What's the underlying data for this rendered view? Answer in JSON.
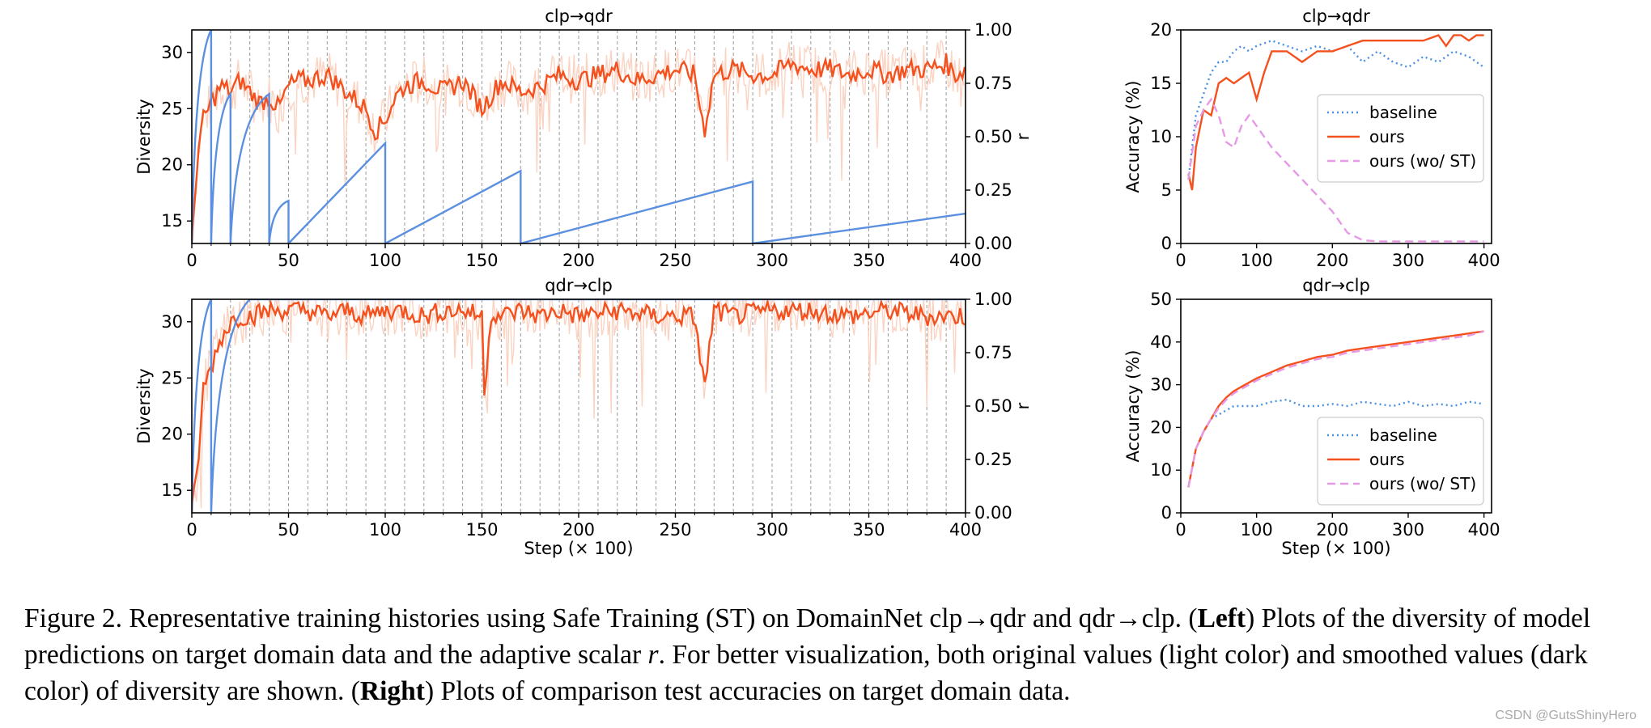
{
  "chart_data": [
    {
      "type": "line",
      "title": "clp→qdr",
      "xlabel": "",
      "ylabel": "Diversity",
      "ylabel_right": "r",
      "xlim": [
        0,
        400
      ],
      "ylim": [
        13,
        32
      ],
      "ylim_right": [
        0,
        1
      ],
      "xticks": [
        "0",
        "50",
        "100",
        "150",
        "200",
        "250",
        "300",
        "350",
        "400"
      ],
      "yticks": [
        "15",
        "20",
        "25",
        "30"
      ],
      "yticks_right": [
        "0.00",
        "0.25",
        "0.50",
        "0.75",
        "1.00"
      ],
      "vlines_every": 10,
      "diversity_smoothed": {
        "x": [
          0,
          3,
          6,
          10,
          15,
          20,
          25,
          30,
          35,
          40,
          45,
          50,
          55,
          60,
          70,
          80,
          90,
          95,
          100,
          105,
          110,
          120,
          130,
          140,
          150,
          160,
          170,
          180,
          190,
          200,
          210,
          220,
          230,
          240,
          250,
          260,
          265,
          270,
          280,
          290,
          300,
          310,
          320,
          330,
          340,
          350,
          360,
          370,
          380,
          390,
          395,
          400
        ],
        "y": [
          13,
          21,
          24,
          25.5,
          27,
          26.5,
          27.5,
          26.5,
          25.5,
          26,
          25,
          27,
          27.5,
          27.5,
          28,
          26.5,
          25,
          23,
          24,
          26,
          27,
          27.5,
          26.5,
          27.5,
          25,
          27.5,
          26.5,
          27,
          28,
          27.5,
          28,
          28.5,
          27.5,
          28,
          28.5,
          28,
          23,
          28,
          28.5,
          28,
          28,
          29,
          28.5,
          28.5,
          28,
          28.5,
          28,
          28.5,
          28.5,
          29,
          28,
          28.5
        ]
      },
      "r_series": {
        "x": [
          0,
          10,
          10,
          20,
          20,
          40,
          40,
          50,
          50,
          100,
          100,
          170,
          170,
          290,
          290,
          400
        ],
        "y": [
          0,
          1,
          0,
          0.7,
          0,
          0.7,
          0,
          0.2,
          0,
          0.47,
          0,
          0.34,
          0,
          0.29,
          0,
          0.14
        ]
      }
    },
    {
      "type": "line",
      "title": "qdr→clp",
      "xlabel": "Step (× 100)",
      "ylabel": "Diversity",
      "ylabel_right": "r",
      "xlim": [
        0,
        400
      ],
      "ylim": [
        13,
        32
      ],
      "ylim_right": [
        0,
        1
      ],
      "xticks": [
        "0",
        "50",
        "100",
        "150",
        "200",
        "250",
        "300",
        "350",
        "400"
      ],
      "yticks": [
        "15",
        "20",
        "25",
        "30"
      ],
      "yticks_right": [
        "0.00",
        "0.25",
        "0.50",
        "0.75",
        "1.00"
      ],
      "vlines_every": 10,
      "diversity_smoothed": {
        "x": [
          0,
          3,
          6,
          10,
          15,
          20,
          25,
          30,
          40,
          50,
          60,
          70,
          80,
          90,
          100,
          110,
          120,
          130,
          140,
          150,
          151,
          155,
          160,
          170,
          180,
          190,
          200,
          220,
          240,
          260,
          265,
          270,
          280,
          300,
          320,
          340,
          360,
          380,
          400
        ],
        "y": [
          13,
          17,
          24,
          26,
          28.5,
          30,
          30.5,
          30.5,
          31,
          31,
          31,
          30.5,
          31,
          30.5,
          31,
          31,
          30.5,
          31,
          31,
          30.5,
          23.5,
          31,
          30.5,
          31,
          30.5,
          31,
          30.5,
          31,
          30.5,
          30.5,
          24,
          31,
          30.5,
          31,
          31,
          30.5,
          31,
          30.5,
          30.5
        ]
      },
      "r_series": {
        "x": [
          0,
          10,
          10,
          30,
          400
        ],
        "y": [
          0,
          1,
          0,
          1,
          1
        ]
      }
    },
    {
      "type": "line",
      "title": "clp→qdr",
      "xlabel": "",
      "ylabel": "Accuracy (%)",
      "xlim": [
        0,
        410
      ],
      "ylim": [
        0,
        20
      ],
      "xticks": [
        "0",
        "100",
        "200",
        "300",
        "400"
      ],
      "yticks": [
        "0",
        "5",
        "10",
        "15",
        "20"
      ],
      "legend": "center-right",
      "series": [
        {
          "name": "baseline",
          "style": "dotted",
          "color": "#4a90e2",
          "x": [
            10,
            20,
            30,
            40,
            50,
            60,
            70,
            80,
            90,
            100,
            120,
            140,
            160,
            180,
            200,
            220,
            240,
            260,
            280,
            300,
            320,
            340,
            360,
            380,
            400
          ],
          "y": [
            6,
            12,
            14,
            16,
            17,
            17,
            18,
            18.5,
            18,
            18.5,
            19,
            18.5,
            18,
            18.5,
            18,
            18.5,
            17,
            18,
            17,
            16.5,
            17.5,
            17,
            18,
            17.5,
            16.5
          ]
        },
        {
          "name": "ours",
          "style": "solid",
          "color": "#f4511e",
          "x": [
            10,
            15,
            20,
            30,
            40,
            50,
            60,
            70,
            80,
            90,
            100,
            110,
            120,
            140,
            160,
            180,
            200,
            220,
            240,
            260,
            280,
            300,
            320,
            340,
            350,
            360,
            370,
            380,
            390,
            400
          ],
          "y": [
            6.5,
            5,
            9,
            12.5,
            12,
            15,
            15.5,
            15,
            15.5,
            16,
            13.5,
            16,
            18,
            18,
            17,
            18,
            18,
            18.5,
            19,
            19,
            19,
            19,
            19,
            19.5,
            18.5,
            19.5,
            19.5,
            19,
            19.5,
            19.5
          ]
        },
        {
          "name": "ours (wo/ ST)",
          "style": "dashed",
          "color": "#e69ae6",
          "x": [
            10,
            20,
            30,
            40,
            50,
            60,
            70,
            80,
            90,
            100,
            120,
            140,
            160,
            180,
            200,
            220,
            240,
            260,
            300,
            350,
            400
          ],
          "y": [
            6,
            11,
            12.5,
            13.5,
            12,
            9.5,
            9,
            11,
            12,
            11,
            9,
            7.5,
            6,
            4.5,
            3,
            1,
            0.3,
            0.2,
            0.2,
            0.2,
            0.2
          ]
        }
      ]
    },
    {
      "type": "line",
      "title": "qdr→clp",
      "xlabel": "Step (× 100)",
      "ylabel": "Accuracy (%)",
      "xlim": [
        0,
        410
      ],
      "ylim": [
        0,
        50
      ],
      "xticks": [
        "0",
        "100",
        "200",
        "300",
        "400"
      ],
      "yticks": [
        "0",
        "10",
        "20",
        "30",
        "40",
        "50"
      ],
      "legend": "bottom-right",
      "series": [
        {
          "name": "baseline",
          "style": "dotted",
          "color": "#4a90e2",
          "x": [
            10,
            20,
            30,
            40,
            50,
            60,
            70,
            80,
            100,
            120,
            140,
            160,
            180,
            200,
            220,
            240,
            260,
            280,
            300,
            320,
            340,
            360,
            380,
            400
          ],
          "y": [
            6,
            15,
            19,
            22,
            23,
            24,
            25,
            25,
            25,
            26,
            26.5,
            25,
            25,
            25.5,
            25,
            26,
            25.5,
            25,
            26,
            25,
            25.5,
            25,
            26,
            25.5
          ]
        },
        {
          "name": "ours",
          "style": "solid",
          "color": "#f4511e",
          "x": [
            10,
            20,
            30,
            40,
            50,
            60,
            70,
            80,
            100,
            120,
            140,
            160,
            180,
            200,
            220,
            240,
            260,
            280,
            300,
            320,
            340,
            360,
            380,
            400
          ],
          "y": [
            6,
            15,
            19,
            22,
            25,
            27,
            28.5,
            29.5,
            31.5,
            33,
            34.5,
            35.5,
            36.5,
            37,
            38,
            38.5,
            39,
            39.5,
            40,
            40.5,
            41,
            41.5,
            42,
            42.5
          ]
        },
        {
          "name": "ours (wo/ ST)",
          "style": "dashed",
          "color": "#e69ae6",
          "x": [
            10,
            20,
            30,
            40,
            50,
            60,
            70,
            80,
            100,
            120,
            140,
            160,
            180,
            200,
            220,
            240,
            260,
            280,
            300,
            320,
            340,
            360,
            380,
            400
          ],
          "y": [
            6,
            15,
            19,
            22,
            24.5,
            26.5,
            28,
            29,
            31,
            32.5,
            34,
            35,
            36,
            36.5,
            37.5,
            38,
            38.5,
            39,
            39.5,
            40,
            40.5,
            41,
            41.5,
            42.5
          ]
        }
      ]
    }
  ],
  "caption": {
    "part1": "Figure 2. Representative training histories using Safe Training (ST) on DomainNet clp→qdr and qdr→clp. (",
    "left_label": "Left",
    "part2": ") Plots of the diversity of model predictions on target domain data and the adaptive scalar ",
    "r_symbol": "r",
    "part3": ". For better visualization, both original values (light color) and smoothed values (dark color) of diversity are shown. (",
    "right_label": "Right",
    "part4": ") Plots of comparison test accuracies on target domain data."
  },
  "watermark": "CSDN @GutsShinyHero"
}
